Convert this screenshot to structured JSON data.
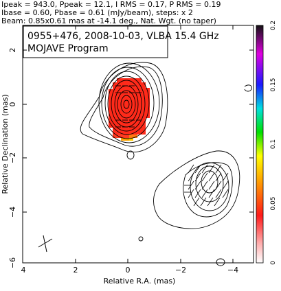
{
  "header_lines": [
    "Ipeak = 943.0, Ppeak = 12.1, I RMS = 0.17, P RMS = 0.19",
    "Ibase = 0.60, Pbase = 0.61 (mJy/beam), steps: x 2",
    "Beam: 0.85x0.61 mas at -14.1 deg., Nat. Wgt. (no taper)"
  ],
  "title_box": {
    "line1": "0955+476, 2008-10-03, VLBA 15.4 GHz",
    "line2": "MOJAVE Program"
  },
  "chart_data": {
    "type": "contour",
    "xlabel": "Relative R.A. (mas)",
    "ylabel": "Relative Declination (mas)",
    "xlim": [
      4,
      -5.2
    ],
    "ylim": [
      -6,
      2.9
    ],
    "x_ticks": [
      "4",
      "2",
      "0",
      "−2",
      "−4"
    ],
    "y_ticks": [
      "2",
      "0",
      "−2",
      "−4",
      "−6"
    ],
    "colorbar": {
      "range": [
        0,
        0.2
      ],
      "ticks": [
        "0",
        "0.05",
        "0.1",
        "0.15",
        "0.2"
      ]
    },
    "core": {
      "x": 0.0,
      "y": 0.0,
      "n_contours": 11
    },
    "secondary_feature": {
      "x": -3.0,
      "y": -3.2
    },
    "beam": {
      "major_mas": 0.85,
      "minor_mas": 0.61,
      "pa_deg": -14.1
    }
  }
}
